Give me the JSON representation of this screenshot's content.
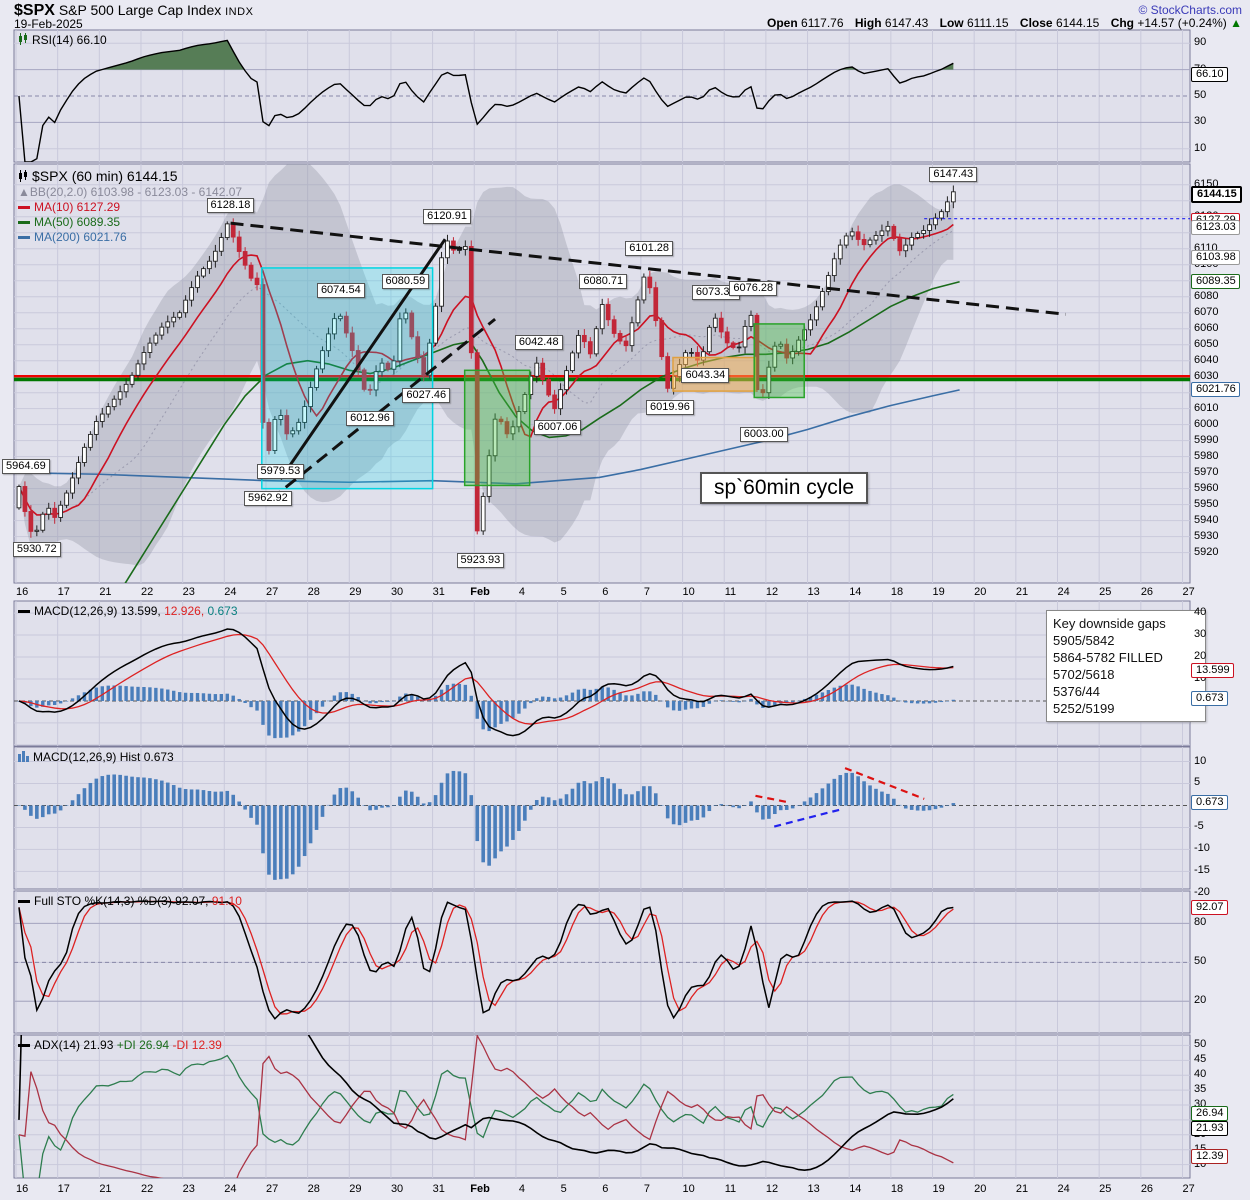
{
  "header": {
    "symbol": "$SPX",
    "name": "S&P 500 Large Cap Index",
    "exchange": "INDX",
    "date": "19-Feb-2025",
    "brand": "© StockCharts.com",
    "open_label": "Open",
    "open": "6117.76",
    "high_label": "High",
    "high": "6147.43",
    "low_label": "Low",
    "low": "6111.15",
    "close_label": "Close",
    "close": "6144.15",
    "chg_label": "Chg",
    "chg": "+14.57 (+0.24%)",
    "chg_dir": "▲"
  },
  "colors": {
    "ma10": "#cc1122",
    "ma50": "#1a6b1a",
    "ma200": "#3a6ea5",
    "candle_down": "#c22738",
    "candle_up_fill": "#ffffff",
    "candle_up_stroke": "#222222",
    "hist_bar": "#4a7ebb",
    "rsi_fill": "#567d56",
    "grid": "#c9c9db",
    "grid_strong": "#a6a6c0",
    "panel_bg": "#e0e0eb",
    "panel_border": "#7b7b9a",
    "support_green": "#007700",
    "support_red": "#ee0000",
    "last_price_blue": "#2222ee"
  },
  "chart_data": {
    "type": "candlestick-multi-panel",
    "symbol": "$SPX",
    "timeframe": "60 min",
    "x_axis": {
      "labels": [
        [
          "16",
          0
        ],
        [
          "17",
          1
        ],
        [
          "21",
          2
        ],
        [
          "22",
          3
        ],
        [
          "23",
          4
        ],
        [
          "24",
          5
        ],
        [
          "27",
          6
        ],
        [
          "28",
          7
        ],
        [
          "29",
          8
        ],
        [
          "30",
          9
        ],
        [
          "31",
          10
        ],
        [
          "Feb",
          11
        ],
        [
          "4",
          12
        ],
        [
          "5",
          13
        ],
        [
          "6",
          14
        ],
        [
          "7",
          15
        ],
        [
          "10",
          16
        ],
        [
          "11",
          17
        ],
        [
          "12",
          18
        ],
        [
          "13",
          19
        ],
        [
          "14",
          20
        ],
        [
          "18",
          21
        ],
        [
          "19",
          22
        ],
        [
          "20",
          23
        ],
        [
          "21",
          24
        ],
        [
          "24",
          25
        ],
        [
          "25",
          26
        ],
        [
          "26",
          27
        ],
        [
          "27",
          28
        ]
      ],
      "days_total": 28.2
    },
    "rsi_panel": {
      "legend": "RSI(14) 66.10",
      "ylim": [
        0,
        100
      ],
      "ticks": [
        90,
        70,
        50,
        30,
        10
      ],
      "levels": {
        "solid": [
          70,
          30
        ],
        "dashed": [
          50
        ],
        "light": [
          90,
          10
        ]
      },
      "axis_callouts": [
        {
          "text": "66.10",
          "v": 66.1,
          "border": "#000000"
        }
      ]
    },
    "price_panel": {
      "legend": {
        "r1": "$SPX (60 min) 6144.15",
        "r2": "BB(20,2.0) 6103.98 - 6123.03 - 6142.07",
        "r3": "MA(10) 6127.29",
        "r4": "MA(50) 6089.35",
        "r5": "MA(200) 6021.76"
      },
      "ylim": [
        5901,
        6163
      ],
      "tick_step": 10,
      "tick_min": 5920,
      "tick_max": 6150,
      "price_anchors": [
        [
          0,
          5948
        ],
        [
          0.15,
          5962
        ],
        [
          0.35,
          5938
        ],
        [
          0.5,
          5929
        ],
        [
          0.8,
          5950
        ],
        [
          1,
          5942
        ],
        [
          1.3,
          5958
        ],
        [
          1.7,
          5985
        ],
        [
          2,
          6002
        ],
        [
          2.4,
          6015
        ],
        [
          2.8,
          6028
        ],
        [
          3.2,
          6048
        ],
        [
          3.6,
          6062
        ],
        [
          4,
          6070
        ],
        [
          4.4,
          6092
        ],
        [
          4.8,
          6105
        ],
        [
          5.15,
          6126
        ],
        [
          5.4,
          6110
        ],
        [
          5.7,
          6092
        ],
        [
          5.95,
          6085
        ],
        [
          6.02,
          5968
        ],
        [
          6.1,
          5978
        ],
        [
          6.35,
          6012
        ],
        [
          6.6,
          5992
        ],
        [
          6.9,
          6003
        ],
        [
          7.2,
          6028
        ],
        [
          7.5,
          6052
        ],
        [
          7.8,
          6072
        ],
        [
          8.1,
          6050
        ],
        [
          8.5,
          6016
        ],
        [
          8.8,
          6040
        ],
        [
          9.1,
          6032
        ],
        [
          9.35,
          6078
        ],
        [
          9.6,
          6052
        ],
        [
          9.85,
          6030
        ],
        [
          10.1,
          6065
        ],
        [
          10.35,
          6118
        ],
        [
          10.6,
          6108
        ],
        [
          10.9,
          6112
        ],
        [
          11,
          6045
        ],
        [
          11.15,
          5928
        ],
        [
          11.35,
          5968
        ],
        [
          11.6,
          6008
        ],
        [
          11.9,
          5992
        ],
        [
          12.2,
          6012
        ],
        [
          12.55,
          6040
        ],
        [
          12.8,
          6022
        ],
        [
          13,
          6010
        ],
        [
          13.3,
          6035
        ],
        [
          13.6,
          6058
        ],
        [
          13.9,
          6042
        ],
        [
          14.1,
          6078
        ],
        [
          14.4,
          6058
        ],
        [
          14.7,
          6048
        ],
        [
          15,
          6078
        ],
        [
          15.2,
          6098
        ],
        [
          15.45,
          6062
        ],
        [
          15.7,
          6022
        ],
        [
          15.95,
          6035
        ],
        [
          16.2,
          6048
        ],
        [
          16.5,
          6038
        ],
        [
          16.8,
          6070
        ],
        [
          17.1,
          6052
        ],
        [
          17.4,
          6046
        ],
        [
          17.7,
          6073
        ],
        [
          17.9,
          6008
        ],
        [
          18.1,
          6032
        ],
        [
          18.35,
          6055
        ],
        [
          18.6,
          6040
        ],
        [
          18.9,
          6055
        ],
        [
          19.2,
          6068
        ],
        [
          19.5,
          6088
        ],
        [
          19.8,
          6110
        ],
        [
          20.1,
          6122
        ],
        [
          20.4,
          6112
        ],
        [
          20.7,
          6118
        ],
        [
          21,
          6124
        ],
        [
          21.3,
          6108
        ],
        [
          21.6,
          6118
        ],
        [
          21.9,
          6122
        ],
        [
          22.1,
          6128
        ],
        [
          22.35,
          6135
        ],
        [
          22.55,
          6146
        ],
        [
          22.65,
          6144.15
        ]
      ],
      "ma50_anchors": [
        [
          2.6,
          5900
        ],
        [
          3.2,
          5925
        ],
        [
          3.8,
          5950
        ],
        [
          4.4,
          5975
        ],
        [
          5,
          6000
        ],
        [
          5.5,
          6018
        ],
        [
          6,
          6031
        ],
        [
          6.5,
          6038
        ],
        [
          7,
          6040
        ],
        [
          7.5,
          6038
        ],
        [
          8,
          6034
        ],
        [
          8.5,
          6032
        ],
        [
          9,
          6035
        ],
        [
          9.5,
          6040
        ],
        [
          10,
          6045
        ],
        [
          10.5,
          6050
        ],
        [
          10.9,
          6052
        ],
        [
          11.2,
          6040
        ],
        [
          11.6,
          6020
        ],
        [
          12,
          6005
        ],
        [
          12.4,
          5996
        ],
        [
          12.8,
          5992
        ],
        [
          13.2,
          5993
        ],
        [
          13.6,
          5997
        ],
        [
          14,
          6004
        ],
        [
          14.5,
          6012
        ],
        [
          15,
          6022
        ],
        [
          15.5,
          6030
        ],
        [
          16,
          6035
        ],
        [
          16.5,
          6039
        ],
        [
          17,
          6042
        ],
        [
          17.5,
          6044
        ],
        [
          18,
          6044
        ],
        [
          18.5,
          6045
        ],
        [
          19,
          6047
        ],
        [
          19.5,
          6051
        ],
        [
          20,
          6058
        ],
        [
          20.5,
          6066
        ],
        [
          21,
          6074
        ],
        [
          21.5,
          6080
        ],
        [
          22,
          6085
        ],
        [
          22.65,
          6089.35
        ]
      ],
      "ma200_anchors": [
        [
          0,
          5970
        ],
        [
          2,
          5969
        ],
        [
          4,
          5967
        ],
        [
          6,
          5965
        ],
        [
          8,
          5964
        ],
        [
          10,
          5965
        ],
        [
          12,
          5963
        ],
        [
          14,
          5967
        ],
        [
          15,
          5972
        ],
        [
          16,
          5978
        ],
        [
          17,
          5984
        ],
        [
          18,
          5990
        ],
        [
          19,
          5997
        ],
        [
          20,
          6005
        ],
        [
          21,
          6012
        ],
        [
          22,
          6018
        ],
        [
          22.65,
          6021.76
        ]
      ],
      "annotations": [
        {
          "text": "6128.18",
          "day": 5.15,
          "price": 6128.18,
          "dir": "above"
        },
        {
          "text": "6120.91",
          "day": 10.35,
          "price": 6120.91,
          "dir": "above"
        },
        {
          "text": "6080.59",
          "day": 9.35,
          "price": 6080.59,
          "dir": "above"
        },
        {
          "text": "6074.54",
          "day": 7.8,
          "price": 6074.54,
          "dir": "above"
        },
        {
          "text": "6027.46",
          "day": 9.85,
          "price": 6027.46,
          "dir": "below"
        },
        {
          "text": "6012.96",
          "day": 8.5,
          "price": 6012.96,
          "dir": "below"
        },
        {
          "text": "5979.53",
          "day": 6.35,
          "price": 5979.53,
          "dir": "below"
        },
        {
          "text": "5962.92",
          "day": 6.05,
          "price": 5962.92,
          "dir": "below"
        },
        {
          "text": "5964.69",
          "day": 0.15,
          "price": 5964.69,
          "dir": "above"
        },
        {
          "text": "5930.72",
          "day": 0.5,
          "price": 5930.72,
          "dir": "below"
        },
        {
          "text": "5923.93",
          "day": 11.15,
          "price": 5923.93,
          "dir": "below"
        },
        {
          "text": "6042.48",
          "day": 12.55,
          "price": 6042.48,
          "dir": "above"
        },
        {
          "text": "6007.06",
          "day": 13.0,
          "price": 6007.06,
          "dir": "below"
        },
        {
          "text": "6080.71",
          "day": 14.1,
          "price": 6080.71,
          "dir": "above"
        },
        {
          "text": "6101.28",
          "day": 15.2,
          "price": 6101.28,
          "dir": "above"
        },
        {
          "text": "6019.96",
          "day": 15.7,
          "price": 6019.96,
          "dir": "below"
        },
        {
          "text": "6073.38",
          "day": 16.8,
          "price": 6073.38,
          "dir": "above"
        },
        {
          "text": "6076.28",
          "day": 17.7,
          "price": 6076.28,
          "dir": "above"
        },
        {
          "text": "6003.00",
          "day": 17.95,
          "price": 6003.0,
          "dir": "below"
        },
        {
          "text": "6043.34",
          "day": 16.55,
          "price": 6030.5,
          "dir": "on"
        },
        {
          "text": "6147.43",
          "day": 22.5,
          "price": 6147.43,
          "dir": "above"
        }
      ],
      "boxes": [
        {
          "d0": 5.9,
          "d1": 10.0,
          "p0": 6098,
          "p1": 5960,
          "fill": "rgba(0,225,240,0.22)",
          "border": "#00d5e2"
        },
        {
          "d0": 10.77,
          "d1": 12.33,
          "p0": 6034,
          "p1": 5962,
          "fill": "rgba(70,200,70,0.38)",
          "border": "#2aa32a"
        },
        {
          "d0": 15.77,
          "d1": 17.75,
          "p0": 6042,
          "p1": 6021,
          "fill": "rgba(250,180,80,0.5)",
          "border": "#e0a040"
        },
        {
          "d0": 17.72,
          "d1": 18.92,
          "p0": 6063,
          "p1": 6017,
          "fill": "rgba(70,200,70,0.38)",
          "border": "#2aa32a"
        }
      ],
      "trendlines": [
        {
          "d0": 5.15,
          "p0": 6126,
          "d1": 25.2,
          "p1": 6069,
          "style": "dashed"
        },
        {
          "d0": 6.35,
          "p0": 5966,
          "d1": 10.3,
          "p1": 6116,
          "style": "solid"
        },
        {
          "d0": 6.1,
          "p0": 5953,
          "d1": 11.5,
          "p1": 6066,
          "style": "dashed"
        }
      ],
      "hlines": [
        {
          "price": 6030.3,
          "color": "#ee0000",
          "w": 2.4
        },
        {
          "price": 6028.3,
          "color": "#007700",
          "w": 3.6
        }
      ],
      "last_price_line": {
        "price": 6128.8,
        "from_day": 21.8
      },
      "textbox": "sp`60min cycle",
      "axis_callouts": [
        {
          "text": "6144.15",
          "v": 6144.15,
          "border": "#000000",
          "bold": true
        },
        {
          "text": "6127.29",
          "v": 6127.29,
          "border": "#cc1122"
        },
        {
          "text": "6123.03",
          "v": 6123.03,
          "border": "#999999"
        },
        {
          "text": "6103.98",
          "v": 6103.98,
          "border": "#999999"
        },
        {
          "text": "6089.35",
          "v": 6089.35,
          "border": "#1a6b1a"
        },
        {
          "text": "6021.76",
          "v": 6021.76,
          "border": "#3a6ea5"
        }
      ]
    },
    "macd_panel": {
      "legend": {
        "name": "MACD(12,26,9)",
        "v1": "13.599,",
        "v2": "12.926,",
        "v3": "0.673"
      },
      "ylim": [
        -20.5,
        45.5
      ],
      "ticks": [
        40,
        30,
        20,
        10
      ],
      "axis_callouts": [
        {
          "text": "13.599",
          "v": 13.599,
          "border": "#cc1122"
        },
        {
          "text": "0.673",
          "v": 0.673,
          "border": "#3a6ea5"
        }
      ],
      "gaps_box": {
        "title": "Key downside gaps",
        "lines": [
          "5905/5842",
          "5864-5782 FILLED",
          "5702/5618",
          "5376/44",
          "5252/5199"
        ]
      }
    },
    "hist_panel": {
      "legend": "MACD(12,26,9) Hist 0.673",
      "ylim": [
        -19,
        13.3
      ],
      "ticks": [
        10,
        5,
        -5,
        -10,
        -15,
        -20
      ],
      "axis_callouts": [
        {
          "text": "0.673",
          "v": 0.673,
          "border": "#3a6ea5"
        }
      ],
      "overlays": [
        {
          "d0": 19.9,
          "v0": 8.5,
          "d1": 21.8,
          "v1": 1.5,
          "color": "#dd1111"
        },
        {
          "d0": 17.75,
          "v0": 2.2,
          "d1": 18.5,
          "v1": 0.8,
          "color": "#dd1111"
        },
        {
          "d0": 18.2,
          "v0": -4.8,
          "d1": 19.8,
          "v1": -0.9,
          "color": "#2222ee"
        }
      ]
    },
    "sto_panel": {
      "legend": {
        "name": "Full STO %K(14,3) %D(3)",
        "v1": "92.07,",
        "v2": "91.10"
      },
      "ylim": [
        -4.5,
        105
      ],
      "ticks": [
        80,
        50,
        20
      ],
      "levels": {
        "solid": [
          80,
          20
        ],
        "dashed": [
          50
        ]
      },
      "axis_callouts": [
        {
          "text": "92.07",
          "v": 92.07,
          "border": "#cc1122"
        }
      ]
    },
    "adx_panel": {
      "legend": {
        "name": "ADX(14) 21.93",
        "di_plus": "+DI 26.94",
        "di_minus": "-DI 12.39"
      },
      "ylim": [
        5.5,
        53.5
      ],
      "ticks": [
        50,
        45,
        40,
        35,
        30,
        25,
        20,
        15,
        10
      ],
      "axis_callouts": [
        {
          "text": "26.94",
          "v": 26.94,
          "border": "#1a6b1a"
        },
        {
          "text": "21.93",
          "v": 21.93,
          "border": "#000000"
        },
        {
          "text": "12.39",
          "v": 12.39,
          "border": "#aa2222"
        }
      ]
    }
  }
}
